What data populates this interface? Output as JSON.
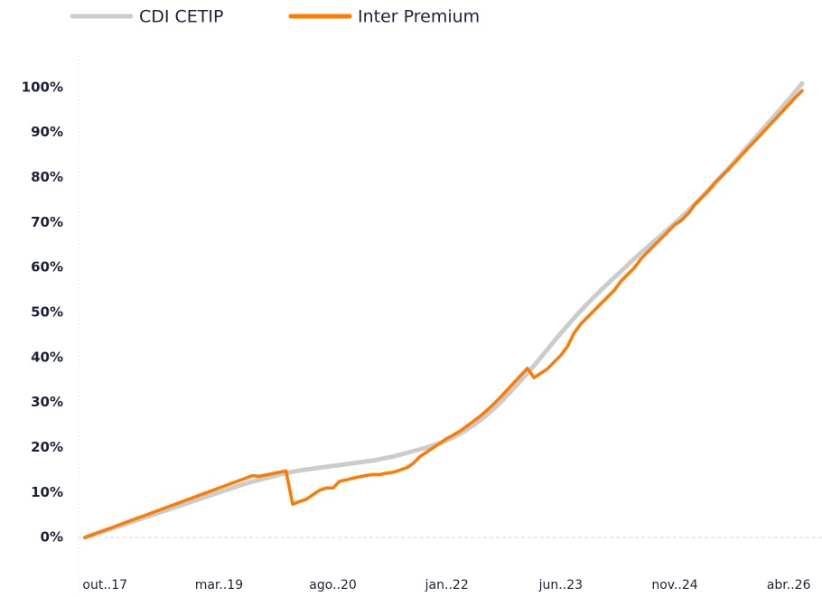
{
  "chart_data": {
    "type": "line",
    "categories": [
      null,
      null,
      null,
      "out..17",
      null,
      null,
      null,
      null,
      null,
      null,
      null,
      null,
      null,
      null,
      null,
      null,
      null,
      null,
      null,
      null,
      "mar..19",
      null,
      null,
      null,
      null,
      null,
      null,
      null,
      null,
      null,
      null,
      null,
      null,
      null,
      null,
      null,
      null,
      "ago..20",
      null,
      null,
      null,
      null,
      null,
      null,
      null,
      null,
      null,
      null,
      null,
      null,
      null,
      null,
      null,
      null,
      "jan..22",
      null,
      null,
      null,
      null,
      null,
      null,
      null,
      null,
      null,
      null,
      null,
      null,
      null,
      null,
      null,
      null,
      "jun..23",
      null,
      null,
      null,
      null,
      null,
      null,
      null,
      null,
      null,
      null,
      null,
      null,
      null,
      null,
      null,
      null,
      "nov..24",
      null,
      null,
      null,
      null,
      null,
      null,
      null,
      null,
      null,
      null,
      null,
      null,
      null,
      null,
      null,
      null,
      "abr..26",
      null,
      null
    ],
    "series": [
      {
        "name": "CDI CETIP",
        "color": "#cccccc",
        "values": [
          0,
          0.5,
          1,
          1.5,
          2,
          2.5,
          3,
          3.5,
          4,
          4.5,
          5,
          5.5,
          6,
          6.5,
          7,
          7.5,
          8,
          8.5,
          9,
          9.5,
          10,
          10.5,
          11,
          11.5,
          12,
          12.4,
          12.8,
          13.2,
          13.6,
          14.0,
          14.3,
          14.6,
          14.9,
          15.1,
          15.3,
          15.5,
          15.7,
          15.9,
          16.1,
          16.3,
          16.5,
          16.7,
          16.9,
          17.1,
          17.4,
          17.7,
          18.0,
          18.4,
          18.8,
          19.2,
          19.6,
          20.0,
          20.5,
          21.0,
          21.6,
          22.3,
          23.1,
          24.0,
          25.0,
          26.1,
          27.3,
          28.6,
          30.0,
          31.6,
          33.2,
          34.8,
          36.5,
          38.2,
          40,
          41.8,
          43.6,
          45.4,
          47.1,
          48.8,
          50.4,
          52,
          53.5,
          55,
          56.4,
          57.8,
          59.2,
          60.6,
          62,
          63.3,
          64.6,
          65.9,
          67.2,
          68.5,
          69.8,
          71.2,
          72.6,
          74.1,
          75.6,
          77.2,
          78.8,
          80.4,
          82,
          83.7,
          85.4,
          87.1,
          88.8,
          90.5,
          92.2,
          93.9,
          95.6,
          97.3,
          99.1,
          100.9
        ]
      },
      {
        "name": "Inter Premium",
        "color": "#ff7a00",
        "values": [
          0,
          0.55,
          1.1,
          1.65,
          2.2,
          2.75,
          3.3,
          3.85,
          4.4,
          4.95,
          5.5,
          6.05,
          6.6,
          7.15,
          7.7,
          8.25,
          8.8,
          9.35,
          9.9,
          10.45,
          11,
          11.55,
          12.1,
          12.65,
          13.2,
          13.75,
          13.6,
          13.9,
          14.2,
          14.5,
          14.8,
          7.4,
          8,
          8.5,
          9.5,
          10.5,
          11,
          11,
          12.5,
          12.8,
          13.2,
          13.5,
          13.8,
          14,
          14,
          14.3,
          14.5,
          15,
          15.5,
          16.5,
          18,
          19,
          20,
          21,
          22,
          22.8,
          23.7,
          24.8,
          25.9,
          27,
          28.3,
          29.7,
          31.2,
          32.8,
          34.4,
          36,
          37.6,
          35.5,
          36.5,
          37.5,
          39,
          40.5,
          42.5,
          45.5,
          47.5,
          49,
          50.5,
          52,
          53.5,
          55,
          57,
          58.5,
          60,
          62,
          63.5,
          65,
          66.5,
          68,
          69.5,
          70.5,
          72,
          74,
          75.5,
          77,
          78.8,
          80.3,
          81.8,
          83.4,
          85,
          86.6,
          88.2,
          89.8,
          91.4,
          93,
          94.6,
          96.2,
          97.8,
          99.3
        ]
      }
    ],
    "ylim": [
      -7,
      107
    ],
    "yticks": [
      {
        "value": 0,
        "label": "0%"
      },
      {
        "value": 10,
        "label": "10%"
      },
      {
        "value": 20,
        "label": "20%"
      },
      {
        "value": 30,
        "label": "30%"
      },
      {
        "value": 40,
        "label": "40%"
      },
      {
        "value": 50,
        "label": "50%"
      },
      {
        "value": 60,
        "label": "60%"
      },
      {
        "value": 70,
        "label": "70%"
      },
      {
        "value": 80,
        "label": "80%"
      },
      {
        "value": 90,
        "label": "90%"
      },
      {
        "value": 100,
        "label": "100%"
      }
    ],
    "legend": "top-left"
  }
}
